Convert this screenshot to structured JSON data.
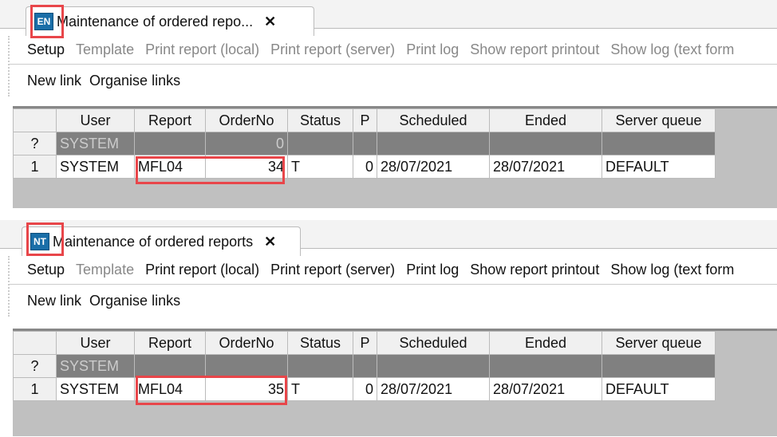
{
  "panels": [
    {
      "badge": "EN",
      "tab_title": "Maintenance of ordered repo...",
      "close": "✕",
      "toolbar": [
        {
          "label": "Setup",
          "enabled": true
        },
        {
          "label": "Template",
          "enabled": false
        },
        {
          "label": "Print report (local)",
          "enabled": false
        },
        {
          "label": "Print report (server)",
          "enabled": false
        },
        {
          "label": "Print log",
          "enabled": false
        },
        {
          "label": "Show report printout",
          "enabled": false
        },
        {
          "label": "Show log (text form",
          "enabled": false
        }
      ],
      "links": [
        "New link",
        "Organise links"
      ],
      "columns": [
        "",
        "User",
        "Report",
        "OrderNo",
        "Status",
        "P",
        "Scheduled",
        "Ended",
        "Server queue"
      ],
      "rows": [
        [
          "?",
          "SYSTEM",
          "",
          "0",
          "",
          "",
          "",
          "",
          ""
        ],
        [
          "1",
          "SYSTEM",
          "MFL04",
          "34",
          "T",
          "0",
          "28/07/2021",
          "28/07/2021",
          "DEFAULT"
        ]
      ]
    },
    {
      "badge": "NT",
      "tab_title": "Maintenance of ordered reports",
      "close": "✕",
      "toolbar": [
        {
          "label": "Setup",
          "enabled": true
        },
        {
          "label": "Template",
          "enabled": false
        },
        {
          "label": "Print report (local)",
          "enabled": true
        },
        {
          "label": "Print report (server)",
          "enabled": true
        },
        {
          "label": "Print log",
          "enabled": true
        },
        {
          "label": "Show report printout",
          "enabled": true
        },
        {
          "label": "Show log (text form",
          "enabled": true
        }
      ],
      "links": [
        "New link",
        "Organise links"
      ],
      "columns": [
        "",
        "User",
        "Report",
        "OrderNo",
        "Status",
        "P",
        "Scheduled",
        "Ended",
        "Server queue"
      ],
      "rows": [
        [
          "?",
          "SYSTEM",
          "",
          "",
          "",
          "",
          "",
          "",
          ""
        ],
        [
          "1",
          "SYSTEM",
          "MFL04",
          "35",
          "T",
          "0",
          "28/07/2021",
          "28/07/2021",
          "DEFAULT"
        ]
      ]
    }
  ],
  "colors": {
    "badge": "#1a6ea8",
    "highlight": "#e8464a",
    "new_row": "#808080"
  }
}
